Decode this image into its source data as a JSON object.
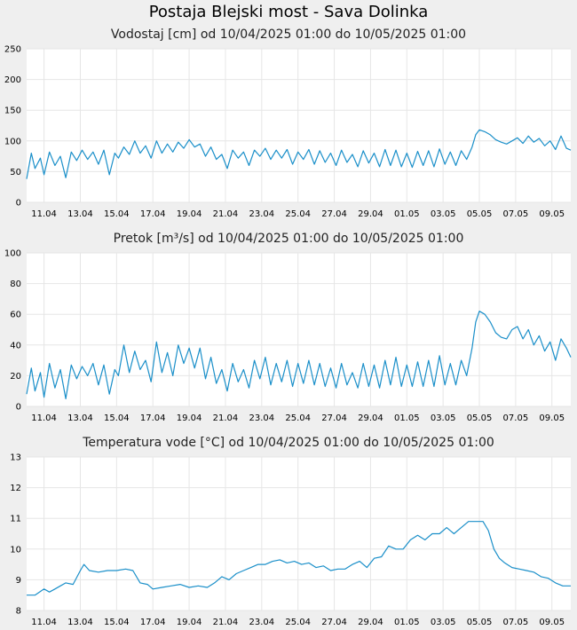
{
  "page_title": "Postaja Blejski most - Sava Dolinka",
  "chart_data": [
    {
      "type": "line",
      "title": "Vodostaj [cm] od 10/04/2025 01:00 do 10/05/2025 01:00",
      "xlabel": "",
      "ylabel": "",
      "ylim": [
        0,
        250
      ],
      "yticks": [
        0,
        50,
        100,
        150,
        200,
        250
      ],
      "xlim": [
        10.04,
        40.04
      ],
      "x_tick_labels": [
        "11.04",
        "13.04",
        "15.04",
        "17.04",
        "19.04",
        "21.04",
        "23.04",
        "25.04",
        "27.04",
        "29.04",
        "01.05",
        "03.05",
        "05.05",
        "07.05",
        "09.05"
      ],
      "grid": true,
      "color": "#1a8fc9",
      "series": [
        {
          "x": [
            10.04,
            10.3,
            10.5,
            10.8,
            11.0,
            11.3,
            11.6,
            11.9,
            12.2,
            12.5,
            12.8,
            13.1,
            13.4,
            13.7,
            14.0,
            14.3,
            14.6,
            14.9,
            15.1,
            15.4,
            15.7,
            16.0,
            16.3,
            16.6,
            16.9,
            17.2,
            17.5,
            17.8,
            18.1,
            18.4,
            18.7,
            19.0,
            19.3,
            19.6,
            19.9,
            20.2,
            20.5,
            20.8,
            21.1,
            21.4,
            21.7,
            22.0,
            22.3,
            22.6,
            22.9,
            23.2,
            23.5,
            23.8,
            24.1,
            24.4,
            24.7,
            25.0,
            25.3,
            25.6,
            25.9,
            26.2,
            26.5,
            26.8,
            27.1,
            27.4,
            27.7,
            28.0,
            28.3,
            28.6,
            28.9,
            29.2,
            29.5,
            29.8,
            30.1,
            30.4,
            30.7,
            31.0,
            31.3,
            31.6,
            31.9,
            32.2,
            32.5,
            32.8,
            33.1,
            33.4,
            33.7,
            34.0,
            34.3,
            34.6,
            34.8,
            35.0,
            35.3,
            35.6,
            35.9,
            36.2,
            36.5,
            36.8,
            37.1,
            37.4,
            37.7,
            38.0,
            38.3,
            38.6,
            38.9,
            39.2,
            39.5,
            39.8,
            40.04
          ],
          "values": [
            38,
            80,
            55,
            72,
            45,
            82,
            60,
            75,
            40,
            82,
            68,
            85,
            70,
            82,
            62,
            85,
            45,
            80,
            72,
            90,
            78,
            100,
            80,
            92,
            72,
            100,
            80,
            95,
            82,
            98,
            88,
            102,
            90,
            95,
            75,
            90,
            70,
            78,
            55,
            85,
            72,
            82,
            60,
            85,
            75,
            88,
            70,
            85,
            72,
            86,
            62,
            82,
            70,
            86,
            62,
            84,
            65,
            80,
            60,
            85,
            65,
            78,
            58,
            84,
            64,
            80,
            58,
            86,
            60,
            85,
            58,
            80,
            57,
            83,
            60,
            84,
            58,
            87,
            62,
            82,
            60,
            84,
            70,
            90,
            110,
            118,
            115,
            110,
            102,
            98,
            95,
            100,
            105,
            96,
            108,
            98,
            104,
            92,
            100,
            86,
            108,
            88,
            85
          ]
        }
      ]
    },
    {
      "type": "line",
      "title": "Pretok [m³/s] od 10/04/2025 01:00 do 10/05/2025 01:00",
      "xlabel": "",
      "ylabel": "",
      "ylim": [
        0,
        100
      ],
      "yticks": [
        0,
        20,
        40,
        60,
        80,
        100
      ],
      "xlim": [
        10.04,
        40.04
      ],
      "x_tick_labels": [
        "11.04",
        "13.04",
        "15.04",
        "17.04",
        "19.04",
        "21.04",
        "23.04",
        "25.04",
        "27.04",
        "29.04",
        "01.05",
        "03.05",
        "05.05",
        "07.05",
        "09.05"
      ],
      "grid": true,
      "color": "#1a8fc9",
      "series": [
        {
          "x": [
            10.04,
            10.3,
            10.5,
            10.8,
            11.0,
            11.3,
            11.6,
            11.9,
            12.2,
            12.5,
            12.8,
            13.1,
            13.4,
            13.7,
            14.0,
            14.3,
            14.6,
            14.9,
            15.1,
            15.4,
            15.7,
            16.0,
            16.3,
            16.6,
            16.9,
            17.2,
            17.5,
            17.8,
            18.1,
            18.4,
            18.7,
            19.0,
            19.3,
            19.6,
            19.9,
            20.2,
            20.5,
            20.8,
            21.1,
            21.4,
            21.7,
            22.0,
            22.3,
            22.6,
            22.9,
            23.2,
            23.5,
            23.8,
            24.1,
            24.4,
            24.7,
            25.0,
            25.3,
            25.6,
            25.9,
            26.2,
            26.5,
            26.8,
            27.1,
            27.4,
            27.7,
            28.0,
            28.3,
            28.6,
            28.9,
            29.2,
            29.5,
            29.8,
            30.1,
            30.4,
            30.7,
            31.0,
            31.3,
            31.6,
            31.9,
            32.2,
            32.5,
            32.8,
            33.1,
            33.4,
            33.7,
            34.0,
            34.3,
            34.6,
            34.8,
            35.0,
            35.3,
            35.6,
            35.9,
            36.2,
            36.5,
            36.8,
            37.1,
            37.4,
            37.7,
            38.0,
            38.3,
            38.6,
            38.9,
            39.2,
            39.5,
            39.8,
            40.04
          ],
          "values": [
            8,
            25,
            10,
            22,
            6,
            28,
            12,
            24,
            5,
            27,
            18,
            26,
            20,
            28,
            14,
            27,
            8,
            24,
            20,
            40,
            22,
            36,
            24,
            30,
            16,
            42,
            22,
            35,
            20,
            40,
            28,
            38,
            25,
            38,
            18,
            32,
            15,
            24,
            10,
            28,
            16,
            24,
            12,
            30,
            18,
            32,
            14,
            28,
            16,
            30,
            13,
            28,
            15,
            30,
            14,
            28,
            13,
            25,
            12,
            28,
            14,
            22,
            12,
            28,
            13,
            27,
            12,
            30,
            14,
            32,
            13,
            27,
            13,
            29,
            13,
            30,
            13,
            33,
            14,
            28,
            14,
            30,
            20,
            38,
            55,
            62,
            60,
            55,
            48,
            45,
            44,
            50,
            52,
            44,
            50,
            40,
            46,
            36,
            42,
            30,
            44,
            38,
            32
          ]
        }
      ]
    },
    {
      "type": "line",
      "title": "Temperatura vode [°C] od 10/04/2025 01:00 do 10/05/2025 01:00",
      "xlabel": "",
      "ylabel": "",
      "ylim": [
        8,
        13
      ],
      "yticks": [
        8,
        9,
        10,
        11,
        12,
        13
      ],
      "xlim": [
        10.04,
        40.04
      ],
      "x_tick_labels": [
        "11.04",
        "13.04",
        "15.04",
        "17.04",
        "19.04",
        "21.04",
        "23.04",
        "25.04",
        "27.04",
        "29.04",
        "01.05",
        "03.05",
        "05.05",
        "07.05",
        "09.05"
      ],
      "grid": true,
      "color": "#1a8fc9",
      "series": [
        {
          "x": [
            10.04,
            10.5,
            11.0,
            11.3,
            11.6,
            11.9,
            12.2,
            12.6,
            13.0,
            13.2,
            13.5,
            14.0,
            14.5,
            15.0,
            15.5,
            15.9,
            16.3,
            16.7,
            17.0,
            17.5,
            18.0,
            18.5,
            19.0,
            19.5,
            20.0,
            20.4,
            20.8,
            21.2,
            21.6,
            22.0,
            22.4,
            22.8,
            23.2,
            23.6,
            24.0,
            24.4,
            24.8,
            25.2,
            25.6,
            26.0,
            26.4,
            26.8,
            27.2,
            27.6,
            28.0,
            28.4,
            28.8,
            29.2,
            29.6,
            30.0,
            30.4,
            30.8,
            31.2,
            31.6,
            32.0,
            32.4,
            32.8,
            33.2,
            33.6,
            34.0,
            34.4,
            34.8,
            35.2,
            35.5,
            35.8,
            36.1,
            36.4,
            36.8,
            37.2,
            37.6,
            38.0,
            38.4,
            38.8,
            39.2,
            39.6,
            40.04
          ],
          "values": [
            8.5,
            8.5,
            8.7,
            8.6,
            8.7,
            8.8,
            8.9,
            8.85,
            9.3,
            9.5,
            9.3,
            9.25,
            9.3,
            9.3,
            9.35,
            9.3,
            8.9,
            8.85,
            8.7,
            8.75,
            8.8,
            8.85,
            8.75,
            8.8,
            8.75,
            8.9,
            9.1,
            9.0,
            9.2,
            9.3,
            9.4,
            9.5,
            9.5,
            9.6,
            9.65,
            9.55,
            9.6,
            9.5,
            9.55,
            9.4,
            9.45,
            9.3,
            9.35,
            9.35,
            9.5,
            9.6,
            9.4,
            9.7,
            9.75,
            10.1,
            10.0,
            10.0,
            10.3,
            10.45,
            10.3,
            10.5,
            10.5,
            10.7,
            10.5,
            10.7,
            10.9,
            10.9,
            10.9,
            10.6,
            10.0,
            9.7,
            9.55,
            9.4,
            9.35,
            9.3,
            9.25,
            9.1,
            9.05,
            8.9,
            8.8,
            8.8
          ]
        }
      ]
    }
  ]
}
